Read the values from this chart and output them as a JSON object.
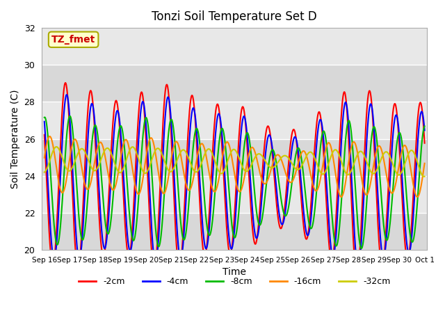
{
  "title": "Tonzi Soil Temperature Set D",
  "xlabel": "Time",
  "ylabel": "Soil Temperature (C)",
  "ylim": [
    20,
    32
  ],
  "annotation_label": "TZ_fmet",
  "annotation_bg": "#ffffcc",
  "annotation_border": "#aaaa00",
  "annotation_text_color": "#cc0000",
  "series_colors": [
    "#ff0000",
    "#0000ff",
    "#00bb00",
    "#ff8800",
    "#cccc00"
  ],
  "series_labels": [
    "-2cm",
    "-4cm",
    "-8cm",
    "-16cm",
    "-32cm"
  ],
  "x_tick_labels": [
    "Sep 16",
    "Sep 17",
    "Sep 18",
    "Sep 19",
    "Sep 20",
    "Sep 21",
    "Sep 22",
    "Sep 23",
    "Sep 24",
    "Sep 25",
    "Sep 26",
    "Sep 27",
    "Sep 28",
    "Sep 29",
    "Sep 30",
    "Oct 1"
  ],
  "num_days": 15,
  "points_per_day": 96,
  "plot_bg": "#e8e8e8",
  "grid_color": "#ffffff"
}
